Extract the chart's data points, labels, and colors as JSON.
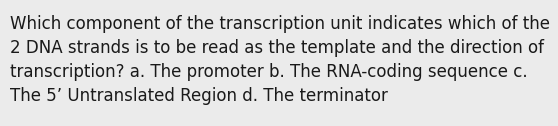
{
  "text": "Which component of the transcription unit indicates which of the\n2 DNA strands is to be read as the template and the direction of\ntranscription? a. The promoter b. The RNA-coding sequence c.\nThe 5’ Untranslated Region d. The terminator",
  "background_color": "#ebebeb",
  "text_color": "#1a1a1a",
  "font_size": 12.0,
  "fig_width": 5.58,
  "fig_height": 1.26,
  "dpi": 100
}
